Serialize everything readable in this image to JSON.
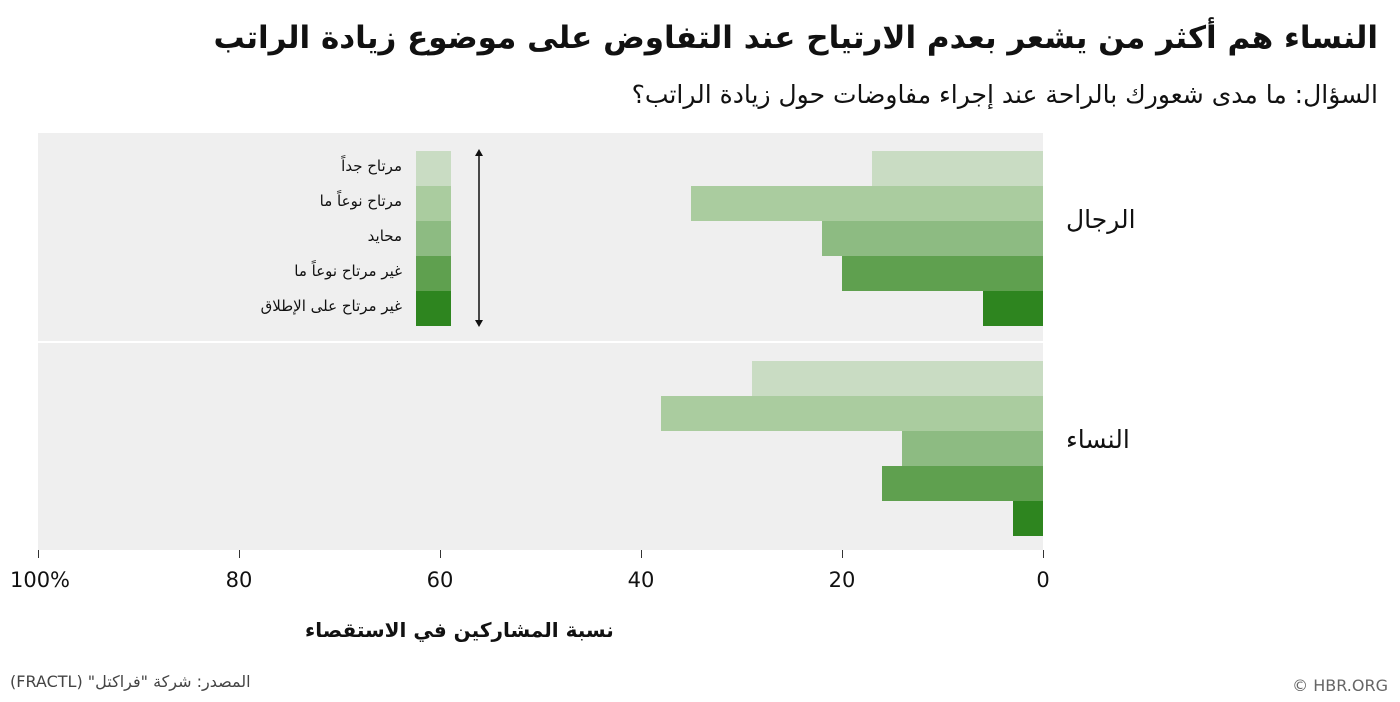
{
  "title": "النساء هم أكثر  من يشعر بعدم الارتياح عند التفاوض على موضوع زيادة الراتب",
  "subtitle": "السؤال: ما مدى شعورك بالراحة عند إجراء مفاوضات حول زيادة الراتب؟",
  "source": "المصدر: شركة \"فراكتل\" (FRACTL)",
  "credit": "© HBR.ORG",
  "chart_data": {
    "type": "bar",
    "orientation": "horizontal",
    "xlabel": "نسبة المشاركين في الاستقصاء",
    "xlim": [
      0,
      100
    ],
    "x_direction": "right-to-left",
    "ticks": [
      "0",
      "20",
      "40",
      "60",
      "80",
      "100%"
    ],
    "tick_values": [
      0,
      20,
      40,
      60,
      80,
      100
    ],
    "groups": [
      "الرجال",
      "النساء"
    ],
    "series": [
      {
        "name": "مرتاح جداً",
        "color": "#c9dcc3",
        "values": [
          17,
          29
        ]
      },
      {
        "name": "مرتاح نوعاً ما",
        "color": "#aacc9f",
        "values": [
          35,
          38
        ]
      },
      {
        "name": "محايد",
        "color": "#8dbb82",
        "values": [
          22,
          14
        ]
      },
      {
        "name": "غير مرتاح نوعاً ما",
        "color": "#5fa04f",
        "values": [
          20,
          16
        ]
      },
      {
        "name": "غير مرتاح على الإطلاق",
        "color": "#2e851f",
        "values": [
          6,
          3
        ]
      }
    ],
    "legend": "top-left"
  }
}
